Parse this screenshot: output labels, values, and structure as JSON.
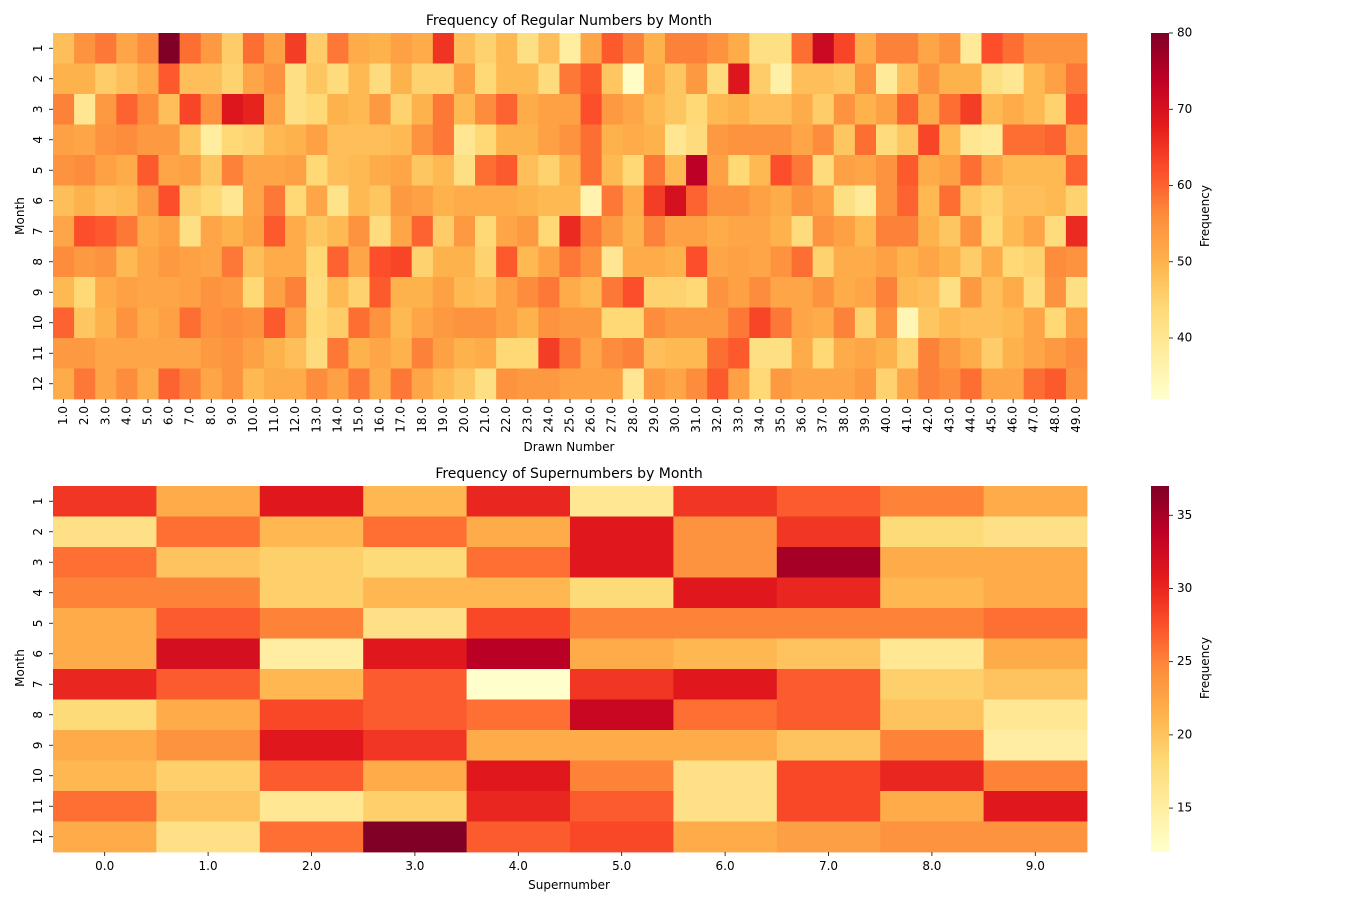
{
  "chart_data": [
    {
      "type": "heatmap",
      "title": "Frequency of Regular Numbers by Month",
      "xlabel": "Drawn Number",
      "ylabel": "Month",
      "x": [
        "1.0",
        "2.0",
        "3.0",
        "4.0",
        "5.0",
        "6.0",
        "7.0",
        "8.0",
        "9.0",
        "10.0",
        "11.0",
        "12.0",
        "13.0",
        "14.0",
        "15.0",
        "16.0",
        "17.0",
        "18.0",
        "19.0",
        "20.0",
        "21.0",
        "22.0",
        "23.0",
        "24.0",
        "25.0",
        "26.0",
        "27.0",
        "28.0",
        "29.0",
        "30.0",
        "31.0",
        "32.0",
        "33.0",
        "34.0",
        "35.0",
        "36.0",
        "37.0",
        "38.0",
        "39.0",
        "40.0",
        "41.0",
        "42.0",
        "43.0",
        "44.0",
        "45.0",
        "46.0",
        "47.0",
        "48.0",
        "49.0"
      ],
      "y": [
        "1",
        "2",
        "3",
        "4",
        "5",
        "6",
        "7",
        "8",
        "9",
        "10",
        "11",
        "12"
      ],
      "values": [
        [
          48,
          55,
          58,
          52,
          56,
          80,
          59,
          54,
          46,
          59,
          53,
          64,
          46,
          58,
          51,
          50,
          53,
          51,
          65,
          48,
          45,
          49,
          42,
          48,
          38,
          52,
          61,
          57,
          50,
          57,
          57,
          55,
          51,
          42,
          42,
          59,
          72,
          63,
          51,
          57,
          57,
          52,
          55,
          39,
          62,
          59,
          55,
          55,
          55
        ],
        [
          50,
          50,
          46,
          48,
          51,
          61,
          48,
          48,
          45,
          52,
          55,
          42,
          47,
          43,
          49,
          43,
          50,
          45,
          45,
          53,
          44,
          49,
          49,
          43,
          58,
          61,
          47,
          33,
          51,
          47,
          54,
          43,
          69,
          46,
          37,
          48,
          48,
          47,
          55,
          39,
          48,
          55,
          50,
          50,
          42,
          40,
          49,
          53,
          58
        ],
        [
          57,
          40,
          54,
          60,
          56,
          48,
          63,
          55,
          69,
          67,
          53,
          42,
          44,
          50,
          49,
          54,
          45,
          50,
          58,
          49,
          56,
          60,
          51,
          53,
          53,
          62,
          54,
          52,
          49,
          47,
          44,
          49,
          50,
          48,
          48,
          51,
          46,
          55,
          50,
          53,
          60,
          51,
          59,
          64,
          49,
          51,
          49,
          45,
          61
        ],
        [
          53,
          52,
          55,
          56,
          54,
          54,
          47,
          38,
          44,
          45,
          49,
          50,
          53,
          48,
          48,
          48,
          49,
          55,
          58,
          40,
          44,
          50,
          50,
          53,
          55,
          59,
          50,
          51,
          50,
          40,
          43,
          54,
          55,
          55,
          55,
          52,
          56,
          47,
          59,
          43,
          47,
          63,
          49,
          40,
          39,
          59,
          59,
          60,
          51
        ],
        [
          55,
          56,
          53,
          51,
          61,
          52,
          53,
          47,
          57,
          52,
          52,
          53,
          44,
          48,
          49,
          51,
          52,
          47,
          49,
          42,
          59,
          61,
          48,
          45,
          50,
          59,
          49,
          44,
          58,
          49,
          74,
          53,
          44,
          49,
          62,
          58,
          43,
          53,
          52,
          55,
          61,
          51,
          53,
          59,
          52,
          49,
          49,
          49,
          60
        ],
        [
          48,
          50,
          48,
          49,
          54,
          62,
          46,
          44,
          40,
          52,
          58,
          44,
          52,
          41,
          49,
          47,
          54,
          53,
          50,
          51,
          51,
          51,
          50,
          49,
          49,
          36,
          58,
          51,
          64,
          70,
          60,
          55,
          55,
          53,
          51,
          55,
          53,
          42,
          39,
          55,
          60,
          49,
          59,
          47,
          45,
          48,
          48,
          49,
          45
        ],
        [
          52,
          62,
          61,
          58,
          51,
          53,
          42,
          52,
          50,
          53,
          61,
          51,
          47,
          49,
          55,
          43,
          52,
          60,
          46,
          54,
          44,
          52,
          54,
          44,
          66,
          58,
          54,
          50,
          57,
          53,
          53,
          51,
          52,
          52,
          50,
          43,
          55,
          53,
          49,
          57,
          57,
          50,
          47,
          55,
          44,
          49,
          52,
          43,
          66
        ],
        [
          56,
          54,
          55,
          49,
          52,
          54,
          53,
          52,
          58,
          48,
          51,
          51,
          44,
          60,
          52,
          62,
          63,
          45,
          50,
          50,
          45,
          61,
          49,
          53,
          58,
          55,
          40,
          51,
          51,
          50,
          62,
          52,
          53,
          52,
          55,
          59,
          45,
          51,
          51,
          53,
          50,
          52,
          50,
          46,
          51,
          44,
          45,
          56,
          55
        ],
        [
          49,
          44,
          51,
          53,
          52,
          52,
          53,
          55,
          54,
          44,
          53,
          57,
          43,
          49,
          45,
          61,
          50,
          50,
          53,
          49,
          48,
          53,
          56,
          58,
          51,
          49,
          58,
          62,
          45,
          45,
          44,
          55,
          53,
          56,
          52,
          52,
          55,
          51,
          52,
          57,
          49,
          48,
          42,
          54,
          48,
          51,
          43,
          55,
          42
        ],
        [
          60,
          47,
          50,
          55,
          51,
          53,
          59,
          55,
          56,
          55,
          61,
          53,
          44,
          46,
          59,
          55,
          49,
          52,
          54,
          55,
          55,
          53,
          50,
          55,
          54,
          54,
          44,
          44,
          56,
          54,
          54,
          54,
          58,
          63,
          58,
          52,
          51,
          57,
          45,
          55,
          35,
          47,
          49,
          48,
          48,
          49,
          52,
          44,
          53
        ],
        [
          54,
          54,
          52,
          52,
          52,
          52,
          52,
          54,
          55,
          53,
          50,
          48,
          43,
          58,
          50,
          52,
          50,
          57,
          53,
          50,
          51,
          44,
          44,
          64,
          58,
          52,
          56,
          57,
          48,
          49,
          49,
          59,
          61,
          42,
          42,
          51,
          44,
          51,
          52,
          50,
          45,
          57,
          54,
          51,
          46,
          50,
          52,
          54,
          56
        ],
        [
          51,
          58,
          52,
          56,
          51,
          60,
          57,
          52,
          55,
          49,
          51,
          51,
          56,
          53,
          58,
          51,
          58,
          52,
          49,
          47,
          42,
          55,
          54,
          54,
          53,
          53,
          53,
          40,
          54,
          52,
          56,
          61,
          53,
          44,
          54,
          52,
          52,
          52,
          54,
          45,
          52,
          57,
          56,
          59,
          52,
          52,
          59,
          61,
          55
        ]
      ],
      "colorbar": {
        "label": "Frequency",
        "min": 32,
        "max": 80,
        "ticks": [
          40,
          50,
          60,
          70,
          80
        ]
      }
    },
    {
      "type": "heatmap",
      "title": "Frequency of Supernumbers by Month",
      "xlabel": "Supernumber",
      "ylabel": "Month",
      "x": [
        "0.0",
        "1.0",
        "2.0",
        "3.0",
        "4.0",
        "5.0",
        "6.0",
        "7.0",
        "8.0",
        "9.0"
      ],
      "y": [
        "1",
        "2",
        "3",
        "4",
        "5",
        "6",
        "7",
        "8",
        "9",
        "10",
        "11",
        "12"
      ],
      "values": [
        [
          29,
          22,
          31,
          21,
          30,
          16,
          29,
          27,
          25,
          22
        ],
        [
          17,
          26,
          21,
          26,
          22,
          31,
          24,
          29,
          18,
          17
        ],
        [
          26,
          20,
          19,
          18,
          26,
          31,
          24,
          35,
          22,
          22
        ],
        [
          25,
          25,
          19,
          21,
          21,
          18,
          31,
          30,
          21,
          22
        ],
        [
          22,
          27,
          25,
          17,
          28,
          25,
          25,
          25,
          25,
          26
        ],
        [
          22,
          32,
          15,
          31,
          34,
          22,
          21,
          20,
          16,
          22
        ],
        [
          30,
          27,
          21,
          27,
          12,
          29,
          31,
          27,
          19,
          20
        ],
        [
          18,
          22,
          28,
          27,
          26,
          33,
          26,
          27,
          20,
          16
        ],
        [
          22,
          24,
          31,
          29,
          22,
          22,
          22,
          20,
          25,
          15
        ],
        [
          21,
          19,
          27,
          22,
          31,
          25,
          17,
          28,
          30,
          25
        ],
        [
          26,
          20,
          16,
          19,
          30,
          27,
          17,
          28,
          22,
          31
        ],
        [
          22,
          17,
          26,
          37,
          27,
          28,
          22,
          23,
          24,
          24
        ]
      ],
      "colorbar": {
        "label": "Frequency",
        "min": 12,
        "max": 37,
        "ticks": [
          15,
          20,
          25,
          30,
          35
        ]
      }
    }
  ]
}
